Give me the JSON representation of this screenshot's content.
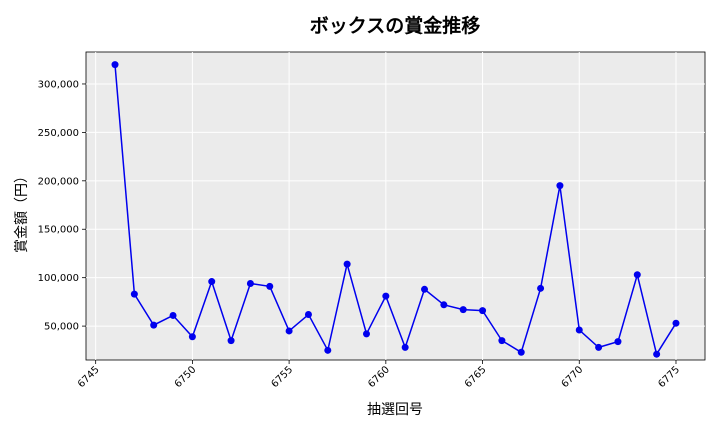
{
  "chart_data": {
    "type": "line",
    "title": "ボックスの賞金推移",
    "xlabel": "抽選回号",
    "ylabel": "賞金額（円）",
    "xlim": [
      6744.5,
      6776.5
    ],
    "ylim": [
      15000,
      333000
    ],
    "x_ticks": [
      6745,
      6750,
      6755,
      6760,
      6765,
      6770,
      6775
    ],
    "y_ticks": [
      50000,
      100000,
      150000,
      200000,
      250000,
      300000
    ],
    "y_tick_labels": [
      "50,000",
      "100,000",
      "150,000",
      "200,000",
      "250,000",
      "300,000"
    ],
    "grid": true,
    "series": [
      {
        "color": "#0000ee",
        "x": [
          6746,
          6747,
          6748,
          6749,
          6750,
          6751,
          6752,
          6753,
          6754,
          6755,
          6756,
          6757,
          6758,
          6759,
          6760,
          6761,
          6762,
          6763,
          6764,
          6765,
          6766,
          6767,
          6768,
          6769,
          6770,
          6771,
          6772,
          6773,
          6774,
          6775
        ],
        "y": [
          320000,
          83000,
          51000,
          61000,
          39000,
          96000,
          35000,
          94000,
          91000,
          45000,
          62000,
          25000,
          114000,
          42000,
          81000,
          28000,
          88000,
          72000,
          67000,
          66000,
          35000,
          23000,
          89000,
          195000,
          46000,
          28000,
          34000,
          103000,
          21000,
          53000
        ]
      }
    ]
  }
}
